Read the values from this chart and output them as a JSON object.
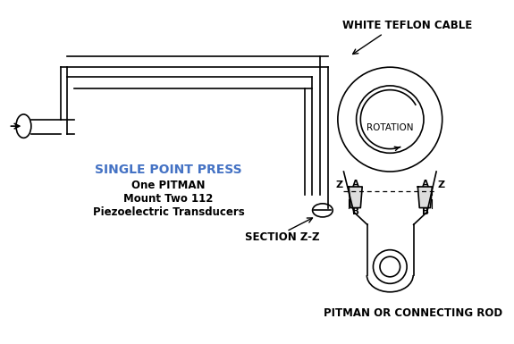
{
  "bg_color": "#ffffff",
  "title_text": "SINGLE POINT PRESS",
  "title_color": "#4472c4",
  "line1": "One PITMAN",
  "line2": "Mount Two 112",
  "line3": "Piezoelectric Transducers",
  "label_white_teflon": "WHITE TEFLON CABLE",
  "label_rotation": "ROTATION",
  "label_section": "SECTION Z-Z",
  "label_pitman": "PITMAN OR CONNECTING ROD",
  "draw_color": "#000000",
  "text_fontsize": 8.5,
  "title_fontsize": 10.0
}
